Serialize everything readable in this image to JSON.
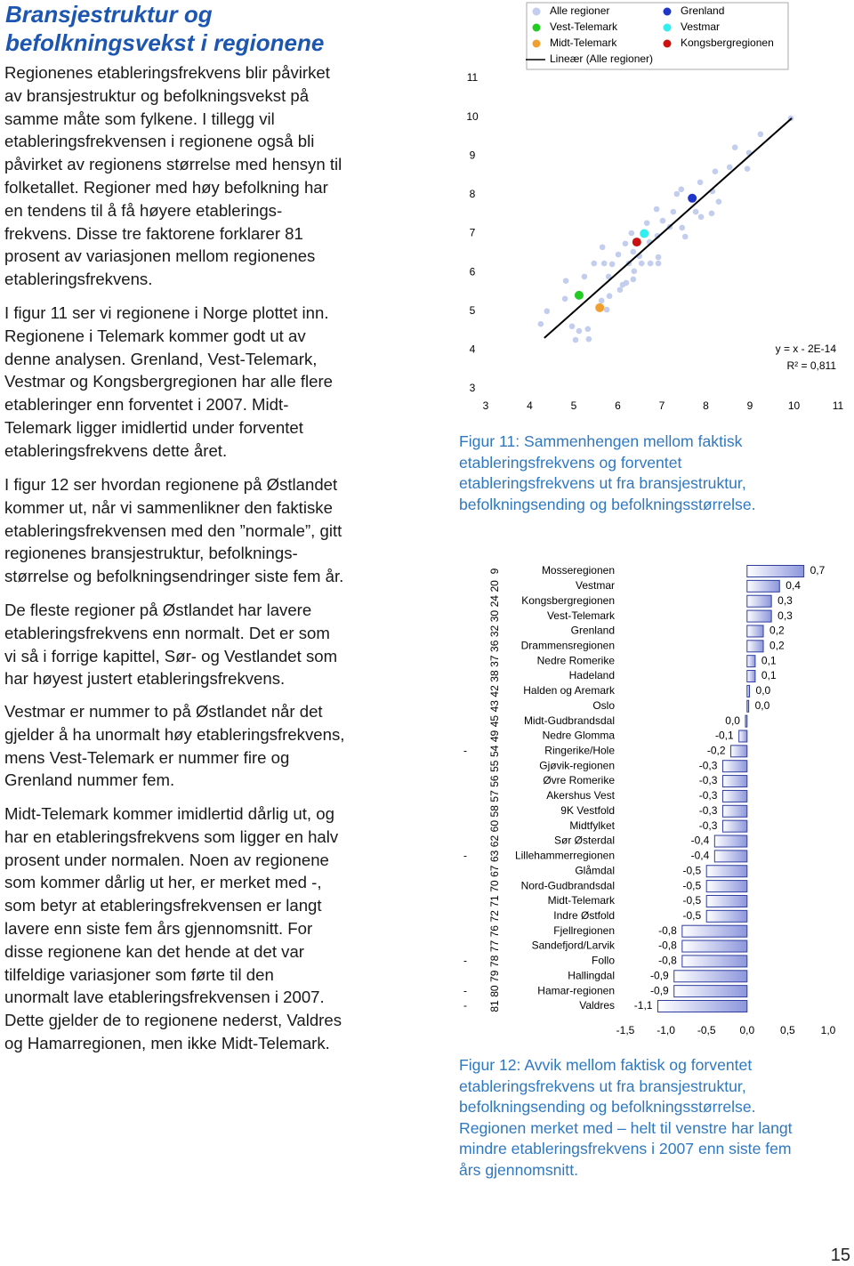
{
  "title": [
    "Bransjestruktur og",
    "befolkningsvekst i regionene"
  ],
  "paragraphs": [
    [
      "Regionenes etableringsfrekvens blir påvirket",
      "av bransjestruktur og befolkningsvekst på",
      "samme måte som fylkene. I tillegg vil",
      "etableringsfrekvensen i regionene også bli",
      "påvirket av regionens størrelse med hensyn til",
      "folketallet. Regioner med høy befolkning har",
      "en tendens til å få høyere etablerings-",
      "frekvens. Disse tre faktorene forklarer 81",
      "prosent av variasjonen mellom regionenes",
      "etableringsfrekvens."
    ],
    [
      "I figur 11 ser vi regionene i Norge plottet inn.",
      "Regionene i Telemark kommer godt ut av",
      "denne analysen. Grenland, Vest-Telemark,",
      "Vestmar og Kongsbergregionen har alle flere",
      "etableringer enn forventet i 2007. Midt-",
      "Telemark ligger imidlertid under forventet",
      "etableringsfrekvens dette året."
    ],
    [
      "I figur 12 ser hvordan regionene på Østlandet",
      "kommer ut, når vi sammenlikner den faktiske",
      "etableringsfrekvensen med den ”normale”, gitt",
      "regionenes bransjestruktur, befolknings-",
      "størrelse og befolkningsendringer siste fem år."
    ],
    [
      "De fleste regioner på Østlandet har lavere",
      "etableringsfrekvens enn normalt. Det er som",
      "vi så i forrige kapittel, Sør- og Vestlandet som",
      "har høyest justert etableringsfrekvens."
    ],
    [
      "Vestmar er nummer to på Østlandet når det",
      "gjelder å ha unormalt høy etableringsfrekvens,",
      "mens Vest-Telemark er nummer fire og",
      "Grenland nummer fem."
    ],
    [
      "Midt-Telemark kommer imidlertid dårlig ut, og",
      "har en etableringsfrekvens som ligger en halv",
      "prosent under normalen. Noen av regionene",
      "som kommer dårlig ut her, er merket med -,",
      "som betyr at etableringsfrekvensen er langt",
      "lavere enn siste fem års gjennomsnitt. For",
      "disse regionene kan det hende at det var",
      "tilfeldige variasjoner som førte til den",
      "unormalt lave etableringsfrekvensen i 2007.",
      "Dette gjelder de to regionene nederst, Valdres",
      "og Hamarregionen, men ikke Midt-Telemark."
    ]
  ],
  "chart_data": [
    {
      "type": "scatter",
      "xlim": [
        3,
        11
      ],
      "ylim": [
        3,
        11
      ],
      "xticks": [
        3,
        4,
        5,
        6,
        7,
        8,
        9,
        10,
        11
      ],
      "yticks": [
        3,
        4,
        5,
        6,
        7,
        8,
        9,
        10,
        11
      ],
      "legend": "top",
      "series": [
        {
          "name": "Alle regioner",
          "color": "#c3cdee",
          "x": [
            4.25,
            4.39,
            4.96,
            5.04,
            5.34,
            5.12,
            5.32,
            4.8,
            4.82,
            5.24,
            5.75,
            5.63,
            5.81,
            5.79,
            5.69,
            5.46,
            5.87,
            5.65,
            6.05,
            6.19,
            6.25,
            6.35,
            6.37,
            6.49,
            6.74,
            6.92,
            6.72,
            6.9,
            6.92,
            7.02,
            6.88,
            7.18,
            7.26,
            7.46,
            7.44,
            7.34,
            7.53,
            7.77,
            7.89,
            8.13,
            8.29,
            8.15,
            7.87,
            8.21,
            8.54,
            8.66,
            8.94,
            8.98,
            9.24,
            9.93,
            6.11,
            6.31,
            6.66,
            6.35,
            6.54,
            6.01,
            6.17
          ],
          "values": [
            4.67,
            5.0,
            4.61,
            4.26,
            4.28,
            4.49,
            4.54,
            5.32,
            5.78,
            5.89,
            5.04,
            5.27,
            5.39,
            5.89,
            6.23,
            6.23,
            6.21,
            6.65,
            5.55,
            5.73,
            6.23,
            6.53,
            6.03,
            6.42,
            6.23,
            6.23,
            6.78,
            6.94,
            6.39,
            7.33,
            7.63,
            7.17,
            7.56,
            7.15,
            8.14,
            8.02,
            6.92,
            7.56,
            7.43,
            7.52,
            7.82,
            8.09,
            8.32,
            8.6,
            8.71,
            9.22,
            8.67,
            9.08,
            9.56,
            9.97,
            5.68,
            7.01,
            7.27,
            5.82,
            6.23,
            6.46,
            6.74
          ]
        },
        {
          "name": "Vest-Telemark",
          "color": "#22cc22",
          "x": [
            5.12
          ],
          "values": [
            5.41
          ]
        },
        {
          "name": "Midt-Telemark",
          "color": "#f0a030",
          "x": [
            5.59
          ],
          "values": [
            5.09
          ]
        },
        {
          "name": "Lineær (Alle regioner)",
          "color": "#000000",
          "type": "line",
          "x": [
            4.33,
            9.95
          ],
          "values": [
            4.31,
            9.97
          ]
        },
        {
          "name": "Grenland",
          "color": "#1f36c8",
          "x": [
            7.69
          ],
          "values": [
            7.91
          ]
        },
        {
          "name": "Vestmar",
          "color": "#33eeee",
          "x": [
            6.6
          ],
          "values": [
            7.0
          ]
        },
        {
          "name": "Kongsbergregionen",
          "color": "#cc1111",
          "x": [
            6.43
          ],
          "values": [
            6.78
          ]
        }
      ],
      "annotations": [
        "y = x - 2E-14",
        "R² = 0,811"
      ]
    },
    {
      "type": "bar",
      "orientation": "horizontal",
      "categories": [
        "Mosseregionen",
        "Vestmar",
        "Kongsbergregionen",
        "Vest-Telemark",
        "Grenland",
        "Drammensregionen",
        "Nedre Romerike",
        "Hadeland",
        "Halden og Aremark",
        "Oslo",
        "Midt-Gudbrandsdal",
        "Nedre Glomma",
        "Ringerike/Hole",
        "Gjøvik-regionen",
        "Øvre Romerike",
        "Akershus Vest",
        "9K Vestfold",
        "Midtfylket",
        "Sør Østerdal",
        "Lillehammerregionen",
        "Glåmdal",
        "Nord-Gudbrandsdal",
        "Midt-Telemark",
        "Indre Østfold",
        "Fjellregionen",
        "Sandefjord/Larvik",
        "Follo",
        "Hallingdal",
        "Hamar-regionen",
        "Valdres"
      ],
      "ranks": [
        9,
        20,
        24,
        30,
        32,
        36,
        37,
        38,
        42,
        43,
        45,
        49,
        54,
        55,
        56,
        57,
        58,
        60,
        62,
        63,
        67,
        70,
        71,
        72,
        76,
        77,
        78,
        79,
        80,
        81
      ],
      "markers": [
        null,
        null,
        null,
        null,
        null,
        null,
        null,
        null,
        null,
        null,
        null,
        null,
        "-",
        null,
        null,
        null,
        null,
        null,
        null,
        "-",
        null,
        null,
        null,
        null,
        null,
        null,
        "-",
        null,
        "-",
        "-"
      ],
      "values": [
        0.7,
        0.4,
        0.3,
        0.3,
        0.2,
        0.2,
        0.1,
        0.1,
        0.03,
        0.02,
        -0.02,
        -0.1,
        -0.2,
        -0.3,
        -0.3,
        -0.3,
        -0.3,
        -0.3,
        -0.4,
        -0.4,
        -0.5,
        -0.5,
        -0.5,
        -0.5,
        -0.8,
        -0.8,
        -0.8,
        -0.9,
        -0.9,
        -1.1
      ],
      "value_labels": [
        "0,7",
        "0,4",
        "0,3",
        "0,3",
        "0,2",
        "0,2",
        "0,1",
        "0,1",
        "0,0",
        "0,0",
        "0,0",
        "-0,1",
        "-0,2",
        "-0,3",
        "-0,3",
        "-0,3",
        "-0,3",
        "-0,3",
        "-0,4",
        "-0,4",
        "-0,5",
        "-0,5",
        "-0,5",
        "-0,5",
        "-0,8",
        "-0,8",
        "-0,8",
        "-0,9",
        "-0,9",
        "-1,1"
      ],
      "xlim": [
        -1.5,
        1.0
      ],
      "xticks": [
        {
          "value": -1.5,
          "label": "-1,5"
        },
        {
          "value": -1.0,
          "label": "-1,0"
        },
        {
          "value": -0.5,
          "label": "-0,5"
        },
        {
          "value": 0,
          "label": "0,0"
        },
        {
          "value": 0.5,
          "label": "0,5"
        },
        {
          "value": 1.0,
          "label": "1,0"
        }
      ],
      "color": "#2e3d9e"
    }
  ],
  "captions": [
    [
      "Figur 11: Sammenhengen mellom faktisk",
      "etableringsfrekvens og forventet",
      "etableringsfrekvens ut fra bransjestruktur,",
      "befolkningsending og befolkningsstørrelse."
    ],
    [
      "Figur 12: Avvik mellom faktisk og forventet",
      "etableringsfrekvens ut fra bransjestruktur,",
      "befolkningsending og befolkningsstørrelse.",
      "Regionen merket med – helt til venstre har langt",
      "mindre etableringsfrekvens i 2007 enn siste fem",
      "års gjennomsnitt."
    ]
  ],
  "page_number": "15"
}
